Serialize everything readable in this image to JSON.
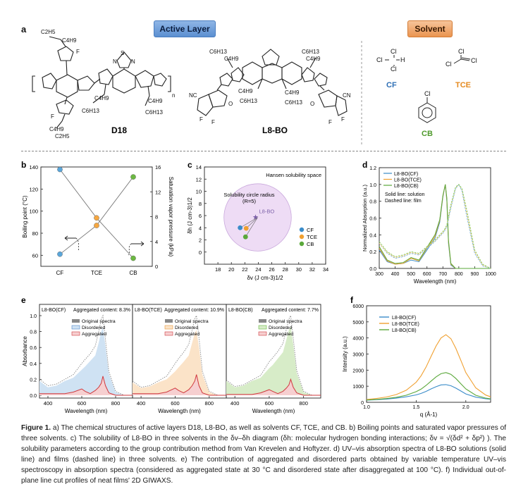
{
  "panel_a": {
    "label": "a",
    "active_layer_title": "Active Layer",
    "solvent_title": "Solvent",
    "molecule_d18": "D18",
    "molecule_l8bo": "L8-BO",
    "d18_substituents": {
      "c2h5_top": "C2H5",
      "c4h9_top": "C4H9",
      "c4h9_mid": "C4H9",
      "c6h13_mid": "C6H13",
      "c4h9_right": "C4H9",
      "c6h13_right": "C6H13",
      "c4h9_bottom": "C4H9",
      "c2h5_bottom": "C2H5",
      "f": "F",
      "s": "S",
      "n": "N",
      "repeat": "n"
    },
    "l8bo_substituents": {
      "c6h13_left": "C6H13",
      "c4h9_left": "C4H9",
      "c6h13_right": "C6H13",
      "c4h9_right": "C4H9",
      "c4h9_bl": "C4H9",
      "c6h13_bl": "C6H13",
      "c4h9_br": "C4H9",
      "c6h13_br": "C6H13",
      "nc": "NC",
      "cn": "CN",
      "o": "O",
      "f": "F"
    },
    "solvents": [
      {
        "name": "CF",
        "formula": "Cl–C–H",
        "color": "#2e6fb5"
      },
      {
        "name": "TCE",
        "formula": "Cl–C=C–Cl",
        "color": "#e58a1f"
      },
      {
        "name": "CB",
        "formula": "Cl–Ph",
        "color": "#4f9a2c"
      }
    ],
    "cl_label": "Cl",
    "h_label": "H"
  },
  "panel_labels": {
    "b": "b",
    "c": "c",
    "d": "d",
    "e": "e",
    "f": "f"
  },
  "chart_data": [
    {
      "id": "b",
      "type": "line",
      "categories": [
        "CF",
        "TCE",
        "CB"
      ],
      "series": [
        {
          "name": "Boiling point (°C)",
          "values": [
            61,
            87,
            131
          ],
          "colors": [
            "#5aa6da",
            "#f5a742",
            "#6cb842"
          ],
          "axis": "left"
        },
        {
          "name": "Saturation vapor pressure (kPa)",
          "values": [
            15.6,
            7.8,
            1.3
          ],
          "colors": [
            "#5aa6da",
            "#f5a742",
            "#6cb842"
          ],
          "axis": "right"
        }
      ],
      "ylabel": "Boiling point (°C)",
      "y2label": "Saturation vapor pressure (kPa)",
      "ylim": [
        50,
        140
      ],
      "y2lim": [
        0,
        16
      ],
      "yticks": [
        "60",
        "80",
        "100",
        "120",
        "140"
      ],
      "y2ticks": [
        "0",
        "4",
        "8",
        "12",
        "16"
      ]
    },
    {
      "id": "c",
      "type": "scatter",
      "title": "Hansen solubility space",
      "xlabel": "δv (J cm-3)1/2",
      "ylabel": "δh (J cm-3)1/2",
      "xlim": [
        16,
        34
      ],
      "ylim": [
        -2,
        14
      ],
      "xticks": [
        "18",
        "20",
        "22",
        "24",
        "26",
        "28",
        "30",
        "32",
        "34"
      ],
      "yticks": [
        "0",
        "2",
        "4",
        "6",
        "8",
        "10",
        "12",
        "14"
      ],
      "circle_label": "Solubility circle radius",
      "circle_sublabel": "(R=5)",
      "center_label": "L8-BO",
      "center": [
        23.9,
        5.7
      ],
      "radius": 5,
      "points": [
        {
          "name": "CF",
          "x": 21.3,
          "y": 4.0,
          "color": "#3a8cc9"
        },
        {
          "name": "TCE",
          "x": 22.2,
          "y": 3.9,
          "color": "#f0a030"
        },
        {
          "name": "CB",
          "x": 22.1,
          "y": 2.5,
          "color": "#5aa83a"
        }
      ]
    },
    {
      "id": "d",
      "type": "line",
      "xlabel": "Wavelength (nm)",
      "ylabel": "Normalized Absorption (a.u.)",
      "xlim": [
        300,
        1000
      ],
      "ylim": [
        0,
        1.2
      ],
      "xticks": [
        "300",
        "400",
        "500",
        "600",
        "700",
        "800",
        "900",
        "1000"
      ],
      "yticks": [
        "0.0",
        "0.2",
        "0.4",
        "0.6",
        "0.8",
        "1.0",
        "1.2"
      ],
      "legend": [
        "L8-BO(CF)",
        "L8-BO(TCE)",
        "L8-BO(CB)"
      ],
      "note1": "Solid line: solution",
      "note2": "Dashed line: film",
      "x": [
        300,
        350,
        400,
        450,
        500,
        550,
        600,
        650,
        680,
        700,
        715,
        725,
        735,
        750,
        780,
        800,
        820,
        850,
        900,
        950,
        1000
      ],
      "series": [
        {
          "name": "L8-BO(CF) solution",
          "color": "#3a8cc9",
          "values": [
            0.22,
            0.08,
            0.05,
            0.06,
            0.1,
            0.08,
            0.22,
            0.36,
            0.55,
            0.85,
            1.0,
            0.8,
            0.3,
            0.04,
            0.0,
            0.0,
            0.0,
            0.0,
            0.0,
            0.0,
            0.0
          ]
        },
        {
          "name": "L8-BO(TCE) solution",
          "color": "#f0a030",
          "values": [
            0.24,
            0.09,
            0.05,
            0.06,
            0.12,
            0.09,
            0.24,
            0.38,
            0.57,
            0.86,
            1.0,
            0.82,
            0.32,
            0.05,
            0.0,
            0.0,
            0.0,
            0.0,
            0.0,
            0.0,
            0.0
          ]
        },
        {
          "name": "L8-BO(CB) solution",
          "color": "#5aa83a",
          "values": [
            0.26,
            0.1,
            0.06,
            0.07,
            0.13,
            0.1,
            0.25,
            0.4,
            0.58,
            0.87,
            1.0,
            0.84,
            0.34,
            0.06,
            0.0,
            0.0,
            0.0,
            0.0,
            0.0,
            0.0,
            0.0
          ]
        },
        {
          "name": "L8-BO(CF) film",
          "color": "#7ab8e0",
          "values": [
            0.3,
            0.18,
            0.12,
            0.14,
            0.18,
            0.16,
            0.24,
            0.32,
            0.38,
            0.42,
            0.46,
            0.5,
            0.58,
            0.72,
            0.95,
            1.0,
            0.92,
            0.62,
            0.18,
            0.03,
            0.0
          ]
        },
        {
          "name": "L8-BO(TCE) film",
          "color": "#f5c070",
          "values": [
            0.3,
            0.19,
            0.13,
            0.15,
            0.19,
            0.17,
            0.25,
            0.33,
            0.39,
            0.43,
            0.47,
            0.51,
            0.6,
            0.74,
            0.96,
            1.0,
            0.94,
            0.66,
            0.2,
            0.04,
            0.0
          ]
        },
        {
          "name": "L8-BO(CB) film",
          "color": "#8ccf68",
          "values": [
            0.32,
            0.2,
            0.14,
            0.16,
            0.2,
            0.18,
            0.26,
            0.34,
            0.4,
            0.44,
            0.48,
            0.52,
            0.62,
            0.76,
            0.97,
            1.0,
            0.95,
            0.7,
            0.22,
            0.05,
            0.0
          ]
        }
      ]
    },
    {
      "id": "e",
      "type": "area",
      "xlabel": "Wavelength (nm)",
      "ylabel": "Absorbance",
      "ylim": [
        0,
        1.0
      ],
      "xlim": [
        350,
        900
      ],
      "yticks": [
        "0.0",
        "0.2",
        "0.4",
        "0.6",
        "0.8",
        "1.0"
      ],
      "xticks": [
        "400",
        "600",
        "800"
      ],
      "legend": [
        "Original spectra",
        "Disordered",
        "Aggregated"
      ],
      "x": [
        350,
        400,
        450,
        500,
        550,
        600,
        620,
        650,
        680,
        700,
        715,
        725,
        740,
        760,
        800,
        850,
        900
      ],
      "subplots": [
        {
          "title": "L8-BO(CF)",
          "aggregated_content": "Aggregated content: 8.3%",
          "fill": "#cfe2f3",
          "line": "#4f86c6",
          "original": [
            0.2,
            0.12,
            0.14,
            0.2,
            0.26,
            0.4,
            0.45,
            0.52,
            0.62,
            0.8,
            0.95,
            1.0,
            0.7,
            0.3,
            0.05,
            0.0,
            0.0
          ],
          "disordered": [
            0.18,
            0.1,
            0.12,
            0.18,
            0.22,
            0.32,
            0.36,
            0.43,
            0.5,
            0.66,
            0.8,
            0.85,
            0.62,
            0.27,
            0.04,
            0.0,
            0.0
          ],
          "aggregated": [
            0.02,
            0.02,
            0.02,
            0.02,
            0.04,
            0.08,
            0.05,
            0.02,
            0.06,
            0.1,
            0.15,
            0.24,
            0.12,
            0.03,
            0.0,
            0.0,
            0.0
          ]
        },
        {
          "title": "L8-BO(TCE)",
          "aggregated_content": "Aggregated content: 10.9%",
          "fill": "#fbe3c8",
          "line": "#e89a3c",
          "original": [
            0.18,
            0.1,
            0.12,
            0.18,
            0.24,
            0.4,
            0.46,
            0.54,
            0.64,
            0.82,
            0.96,
            1.0,
            0.72,
            0.3,
            0.05,
            0.0,
            0.0
          ],
          "disordered": [
            0.16,
            0.09,
            0.11,
            0.16,
            0.2,
            0.3,
            0.35,
            0.42,
            0.5,
            0.66,
            0.78,
            0.82,
            0.6,
            0.26,
            0.04,
            0.0,
            0.0
          ],
          "aggregated": [
            0.02,
            0.02,
            0.02,
            0.02,
            0.04,
            0.09,
            0.06,
            0.03,
            0.07,
            0.12,
            0.18,
            0.26,
            0.12,
            0.03,
            0.0,
            0.0,
            0.0
          ]
        },
        {
          "title": "L8-BO(CB)",
          "aggregated_content": "Aggregated content: 7.7%",
          "fill": "#d7ecc8",
          "line": "#6cb842",
          "original": [
            0.19,
            0.11,
            0.13,
            0.19,
            0.25,
            0.42,
            0.47,
            0.55,
            0.65,
            0.83,
            0.96,
            1.0,
            0.72,
            0.31,
            0.05,
            0.0,
            0.0
          ],
          "disordered": [
            0.18,
            0.1,
            0.12,
            0.18,
            0.22,
            0.34,
            0.38,
            0.46,
            0.54,
            0.7,
            0.82,
            0.86,
            0.64,
            0.28,
            0.04,
            0.0,
            0.0
          ],
          "aggregated": [
            0.01,
            0.01,
            0.01,
            0.01,
            0.03,
            0.07,
            0.05,
            0.02,
            0.05,
            0.09,
            0.13,
            0.2,
            0.1,
            0.03,
            0.0,
            0.0,
            0.0
          ]
        }
      ],
      "aggregated_color": "#d0393e"
    },
    {
      "id": "f",
      "type": "line",
      "xlabel": "q (Å-1)",
      "ylabel": "Intensity (a.u.)",
      "xlim": [
        1.0,
        2.25
      ],
      "ylim": [
        0,
        6000
      ],
      "xticks": [
        "1.0",
        "1.5",
        "2.0"
      ],
      "yticks": [
        "0",
        "1000",
        "2000",
        "3000",
        "4000",
        "5000",
        "6000"
      ],
      "legend": [
        "L8-BO(CF)",
        "L8-BO(TCE)",
        "L8-BO(CB)"
      ],
      "x": [
        1.0,
        1.1,
        1.2,
        1.3,
        1.4,
        1.5,
        1.55,
        1.6,
        1.65,
        1.7,
        1.75,
        1.8,
        1.85,
        1.9,
        1.95,
        2.0,
        2.1,
        2.2,
        2.25
      ],
      "series": [
        {
          "name": "L8-BO(CF)",
          "color": "#3a8cc9",
          "values": [
            130,
            160,
            200,
            260,
            340,
            460,
            550,
            680,
            830,
            970,
            1080,
            1100,
            1030,
            880,
            700,
            520,
            320,
            220,
            190
          ]
        },
        {
          "name": "L8-BO(TCE)",
          "color": "#f0a030",
          "values": [
            170,
            240,
            330,
            480,
            750,
            1250,
            1650,
            2200,
            2850,
            3500,
            4000,
            4200,
            3950,
            3350,
            2600,
            1850,
            900,
            450,
            340
          ]
        },
        {
          "name": "L8-BO(CB)",
          "color": "#5aa83a",
          "values": [
            140,
            180,
            230,
            310,
            440,
            660,
            820,
            1050,
            1320,
            1580,
            1780,
            1850,
            1740,
            1480,
            1150,
            830,
            440,
            260,
            210
          ]
        }
      ]
    }
  ],
  "caption": {
    "figure_label": "Figure 1.",
    "text": "a) The chemical structures of active layers D18, L8-BO, as well as solvents CF, TCE, and CB. b) Boiling points and saturated vapor pressures of three solvents. c) The solubility of L8-BO in three solvents in the δv–δh diagram (δh: molecular hydrogen bonding interactions; δv = √(δd² + δp²) ). The solubility parameters according to the group contribution method from Van Krevelen and Hoftyzer. d) UV–vis absorption spectra of L8-BO solutions (solid line) and films (dashed line) in three solvents. e) The contribution of aggregated and disordered parts obtained by variable temperature UV–vis spectroscopy in absorption spectra (considered as aggregated state at 30 °C and disordered state after disaggregated at 100 °C). f) Individual out-of-plane line cut profiles of neat films' 2D GIWAXS."
  },
  "colors": {
    "active_layer_badge": "#5b8fd1",
    "solvent_badge": "#f0a15a",
    "circle_fill": "#eedcf5",
    "divider": "#888888"
  }
}
